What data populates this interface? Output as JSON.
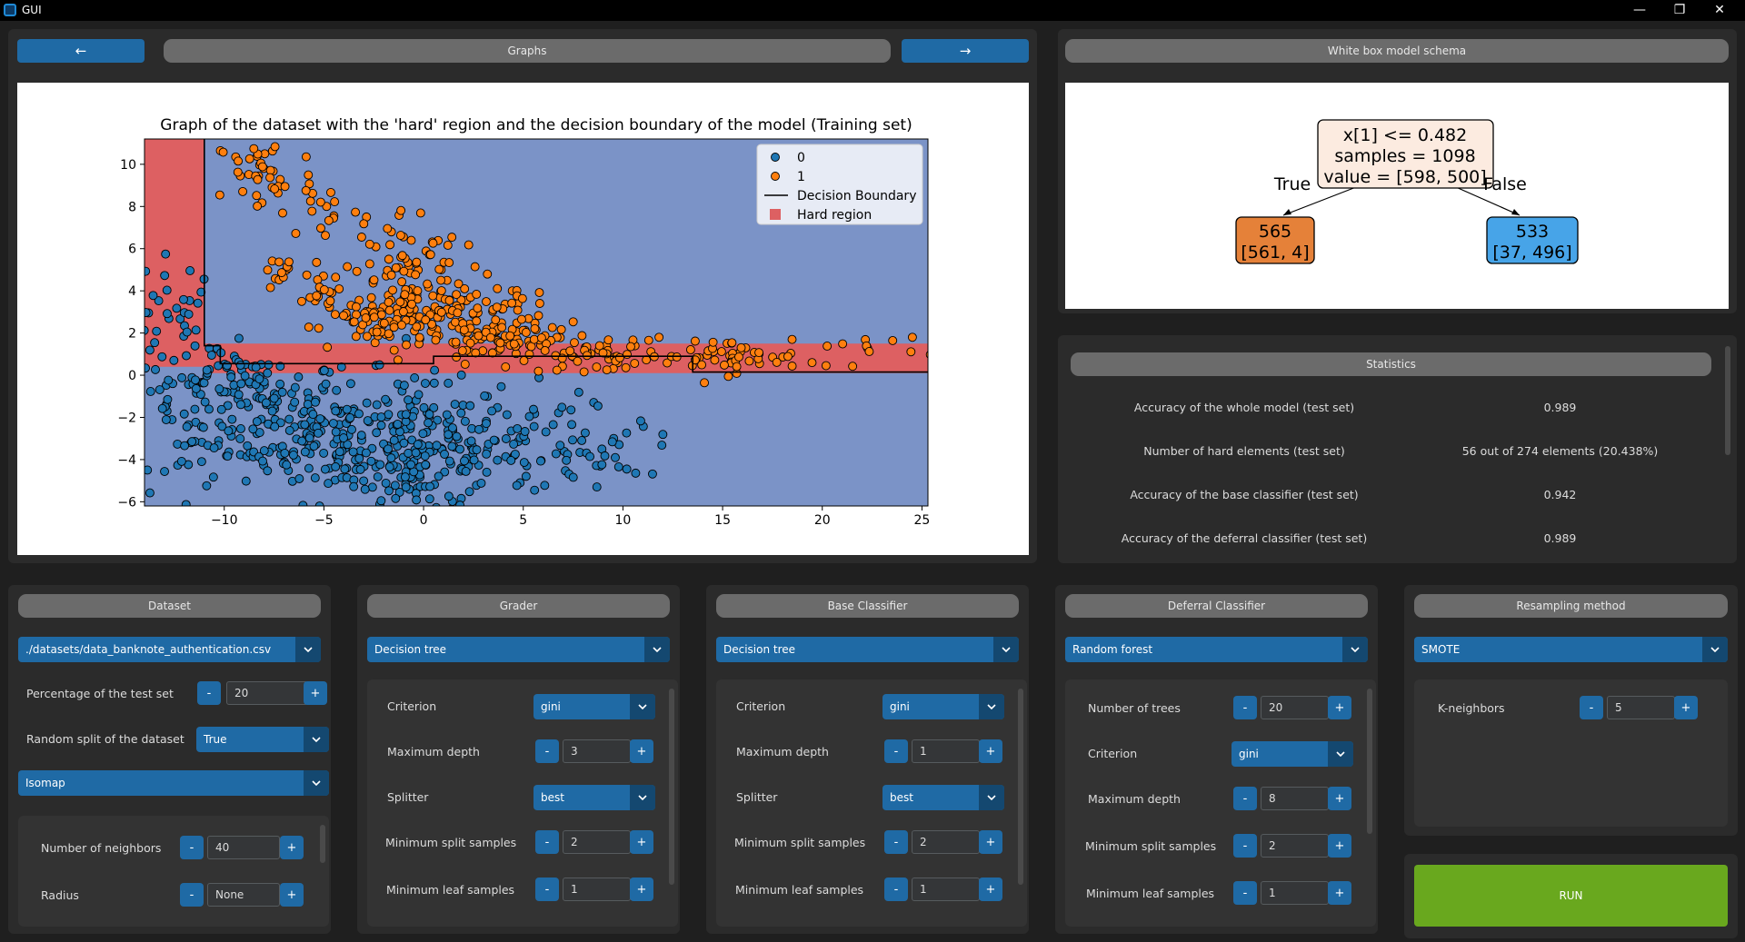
{
  "window": {
    "title": "GUI",
    "minimize": "—",
    "restore": "❐",
    "close": "✕"
  },
  "nav": {
    "prev": "←",
    "next": "→",
    "graphs_label": "Graphs"
  },
  "schema": {
    "header": "White box model schema",
    "root": {
      "line1": "x[1] <= 0.482",
      "line2": "samples = 1098",
      "line3": "value = [598, 500]"
    },
    "left": {
      "line1": "565",
      "line2": "[561, 4]"
    },
    "right": {
      "line1": "533",
      "line2": "[37, 496]"
    },
    "true_label": "True",
    "false_label": "False"
  },
  "statistics": {
    "header": "Statistics",
    "rows": [
      {
        "label": "Accuracy of the whole model (test set)",
        "value": "0.989"
      },
      {
        "label": "Number of hard elements (test set)",
        "value": "56 out of 274 elements (20.438%)"
      },
      {
        "label": "Accuracy of the base classifier (test set)",
        "value": "0.942"
      },
      {
        "label": "Accuracy of the deferral classifier (test set)",
        "value": "0.989"
      }
    ]
  },
  "dataset": {
    "header": "Dataset",
    "file": "./datasets/data_banknote_authentication.csv",
    "test_pct_label": "Percentage of the test set",
    "test_pct": "20",
    "split_label": "Random split of the dataset",
    "split": "True",
    "reduction": "Isomap",
    "neighbors_label": "Number of neighbors",
    "neighbors": "40",
    "radius_label": "Radius",
    "radius": "None"
  },
  "grader": {
    "header": "Grader",
    "model": "Decision tree",
    "criterion_label": "Criterion",
    "criterion": "gini",
    "depth_label": "Maximum depth",
    "depth": "3",
    "splitter_label": "Splitter",
    "splitter": "best",
    "minsplit_label": "Minimum split samples",
    "minsplit": "2",
    "minleaf_label": "Minimum leaf samples",
    "minleaf": "1"
  },
  "base": {
    "header": "Base Classifier",
    "model": "Decision tree",
    "criterion_label": "Criterion",
    "criterion": "gini",
    "depth_label": "Maximum depth",
    "depth": "1",
    "splitter_label": "Splitter",
    "splitter": "best",
    "minsplit_label": "Minimum split samples",
    "minsplit": "2",
    "minleaf_label": "Minimum leaf samples",
    "minleaf": "1"
  },
  "deferral": {
    "header": "Deferral Classifier",
    "model": "Random forest",
    "trees_label": "Number of trees",
    "trees": "20",
    "criterion_label": "Criterion",
    "criterion": "gini",
    "depth_label": "Maximum depth",
    "depth": "8",
    "minsplit_label": "Minimum split samples",
    "minsplit": "2",
    "minleaf_label": "Minimum leaf samples",
    "minleaf": "1"
  },
  "resampling": {
    "header": "Resampling method",
    "method": "SMOTE",
    "k_label": "K-neighbors",
    "k": "5"
  },
  "run": {
    "label": "RUN"
  },
  "spin": {
    "minus": "-",
    "plus": "+"
  },
  "colors": {
    "accent": "#1f6aa5",
    "run": "#69a81e",
    "hard": "#dd6062",
    "region": "#7b93c7",
    "class0": "#1f77b4",
    "class1": "#ff7f0e"
  },
  "chart_data": {
    "type": "scatter",
    "title": "Graph of the dataset with the 'hard' region and the decision boundary of the model (Training set)",
    "xlim": [
      -14,
      25.3
    ],
    "ylim": [
      -6.2,
      11.2
    ],
    "xticks": [
      -10,
      -5,
      0,
      5,
      10,
      15,
      20,
      25
    ],
    "yticks": [
      -6,
      -4,
      -2,
      0,
      2,
      4,
      6,
      8,
      10
    ],
    "xtick_labels": [
      "−10",
      "−5",
      "0",
      "5",
      "10",
      "15",
      "20",
      "25"
    ],
    "ytick_labels": [
      "−6",
      "−4",
      "−2",
      "0",
      "2",
      "4",
      "6",
      "8",
      "10"
    ],
    "legend": {
      "placement": "top-right",
      "items": [
        "0",
        "1",
        "Decision Boundary",
        "Hard region"
      ]
    },
    "hard_region": [
      [
        [
          -14,
          11.2
        ],
        [
          -11,
          11.2
        ],
        [
          -11,
          0.4
        ],
        [
          -14,
          0.4
        ]
      ],
      [
        [
          -11,
          1.5
        ],
        [
          25.3,
          1.5
        ],
        [
          25.3,
          0.1
        ],
        [
          -11,
          0.1
        ]
      ]
    ],
    "boundary": [
      [
        -11,
        11.2
      ],
      [
        -11,
        1.4
      ],
      [
        -10.2,
        1.4
      ],
      [
        -10.2,
        0.55
      ],
      [
        0.5,
        0.55
      ],
      [
        0.5,
        0.9
      ],
      [
        13.5,
        0.9
      ],
      [
        13.5,
        0.15
      ],
      [
        25.3,
        0.15
      ]
    ],
    "series": [
      {
        "name": "0",
        "clusters": [
          [
            -12.5,
            2.5,
            1.2,
            1.6,
            40
          ],
          [
            -8,
            -2,
            2,
            1.5,
            120
          ],
          [
            -4,
            -3,
            2,
            1.5,
            120
          ],
          [
            0,
            -3.5,
            2,
            1.6,
            120
          ],
          [
            5,
            -3.3,
            2.5,
            1.3,
            80
          ],
          [
            10,
            -3.6,
            1.5,
            0.6,
            20
          ],
          [
            -12,
            -2.5,
            1.3,
            1.5,
            40
          ],
          [
            -10,
            0.2,
            1.2,
            0.5,
            30
          ],
          [
            -1,
            -5,
            1.2,
            0.8,
            30
          ]
        ]
      },
      {
        "name": "1",
        "clusters": [
          [
            -8,
            9.5,
            1.3,
            1,
            40
          ],
          [
            -5,
            8,
            1,
            0.8,
            15
          ],
          [
            -1,
            5,
            1.5,
            1.5,
            80
          ],
          [
            0,
            3,
            2,
            1,
            80
          ],
          [
            3,
            2.3,
            2,
            0.8,
            80
          ],
          [
            5,
            1.5,
            1.5,
            0.5,
            40
          ],
          [
            9,
            1,
            1.5,
            0.4,
            40
          ],
          [
            15,
            0.9,
            2,
            0.4,
            50
          ],
          [
            -5,
            3.8,
            0.5,
            0.6,
            20
          ],
          [
            -7,
            5,
            0.5,
            0.3,
            12
          ],
          [
            -2,
            2.2,
            1,
            0.5,
            30
          ],
          [
            22,
            1.3,
            2,
            0.4,
            15
          ]
        ]
      }
    ]
  }
}
